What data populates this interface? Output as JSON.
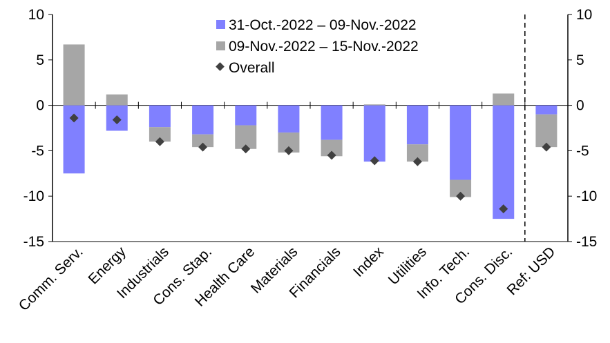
{
  "chart_data": {
    "type": "bar",
    "stacked": true,
    "categories": [
      "Comm. Serv.",
      "Energy",
      "Industrials",
      "Cons. Stap.",
      "Health Care",
      "Materials",
      "Financials",
      "Index",
      "Utilities",
      "Info. Tech.",
      "Cons. Disc.",
      "Ref: USD"
    ],
    "series": [
      {
        "name": "31-Oct.-2022 – 09-Nov.-2022",
        "kind": "bar",
        "color": "#8080ff",
        "values": [
          -7.5,
          -2.8,
          -2.4,
          -3.2,
          -2.2,
          -3.0,
          -3.8,
          -6.2,
          -4.3,
          -8.2,
          -12.5,
          -1.0
        ]
      },
      {
        "name": "09-Nov.-2022 – 15-Nov.-2022",
        "kind": "bar",
        "color": "#a6a6a6",
        "values": [
          6.7,
          1.2,
          -1.6,
          -1.4,
          -2.6,
          -2.2,
          -1.8,
          0.1,
          -1.9,
          -1.9,
          1.3,
          -3.6
        ]
      },
      {
        "name": "Overall",
        "kind": "marker",
        "color": "#404040",
        "values": [
          -1.4,
          -1.6,
          -4.0,
          -4.6,
          -4.8,
          -5.0,
          -5.5,
          -6.1,
          -6.2,
          -10.0,
          -11.4,
          -4.6
        ]
      }
    ],
    "ylim": [
      -15,
      10
    ],
    "yticks": [
      "-15",
      "-10",
      "-5",
      "0",
      "5",
      "10"
    ],
    "ytick_values": [
      -15,
      -10,
      -5,
      0,
      5,
      10
    ],
    "legend_position": "top-center",
    "reference_divider_before": "Ref: USD",
    "grid": false
  }
}
